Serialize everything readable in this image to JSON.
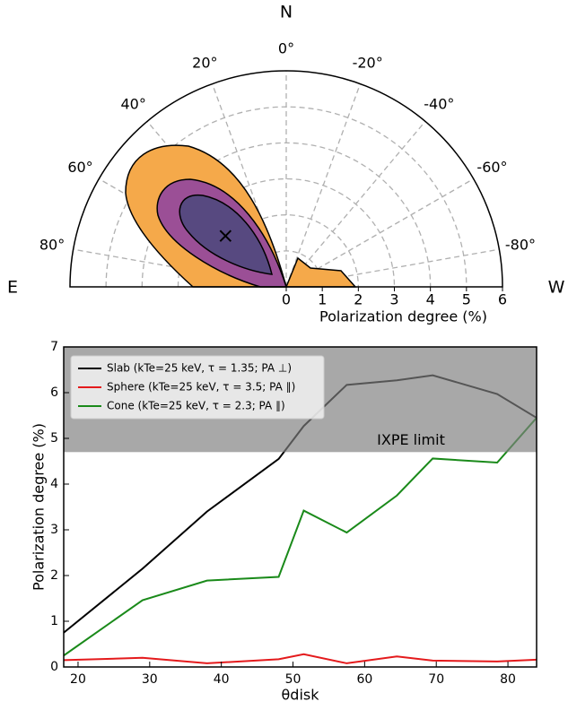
{
  "chart_data": [
    {
      "type": "polar",
      "xlabel": "Polarization degree (%)",
      "compass": {
        "top": "N",
        "left": "E",
        "right": "W"
      },
      "rlim": [
        0,
        6
      ],
      "rticks": [
        0,
        1,
        2,
        3,
        4,
        5,
        6
      ],
      "angleticks": [
        {
          "value": 80,
          "label": "80°"
        },
        {
          "value": 60,
          "label": "60°"
        },
        {
          "value": 40,
          "label": "40°"
        },
        {
          "value": 20,
          "label": "20°"
        },
        {
          "value": 0,
          "label": "0°"
        },
        {
          "value": -20,
          "label": "-20°"
        },
        {
          "value": -40,
          "label": "-40°"
        },
        {
          "value": -60,
          "label": "-60°"
        },
        {
          "value": -80,
          "label": "-80°"
        }
      ],
      "grid": true,
      "point": {
        "pd": 2.2,
        "pa": 50
      }
    },
    {
      "type": "line",
      "xlabel": "θdisk",
      "ylabel": "Polarization degree (%)",
      "x": [
        18,
        29,
        38,
        48,
        51.5,
        57.5,
        64.5,
        69.5,
        78.5,
        84
      ],
      "series": [
        {
          "name": "Slab (kTe=25 keV, τ = 1.35; PA ⊥)",
          "color": "#000000",
          "values": [
            0.75,
            2.15,
            3.4,
            4.55,
            5.27,
            6.17,
            6.27,
            6.38,
            5.97,
            5.45
          ]
        },
        {
          "name": "Sphere (kTe=25 keV, τ = 3.5; PA ∥)",
          "color": "#e41a1c",
          "values": [
            0.15,
            0.2,
            0.08,
            0.17,
            0.28,
            0.08,
            0.23,
            0.14,
            0.12,
            0.16
          ]
        },
        {
          "name": "Cone (kTe=25 keV, τ = 2.3; PA ∥)",
          "color": "#1a8a1a",
          "values": [
            0.25,
            1.46,
            1.89,
            1.97,
            3.42,
            2.94,
            3.75,
            4.56,
            4.47,
            5.45
          ]
        }
      ],
      "shade": {
        "label": "IXPE limit",
        "from": 4.7,
        "to": 7
      },
      "xlim": [
        18,
        84
      ],
      "ylim": [
        0,
        7
      ],
      "xticks": [
        20,
        30,
        40,
        50,
        60,
        70,
        80
      ],
      "yticks": [
        0,
        1,
        2,
        3,
        4,
        5,
        6,
        7
      ],
      "legend": "upper left"
    }
  ]
}
